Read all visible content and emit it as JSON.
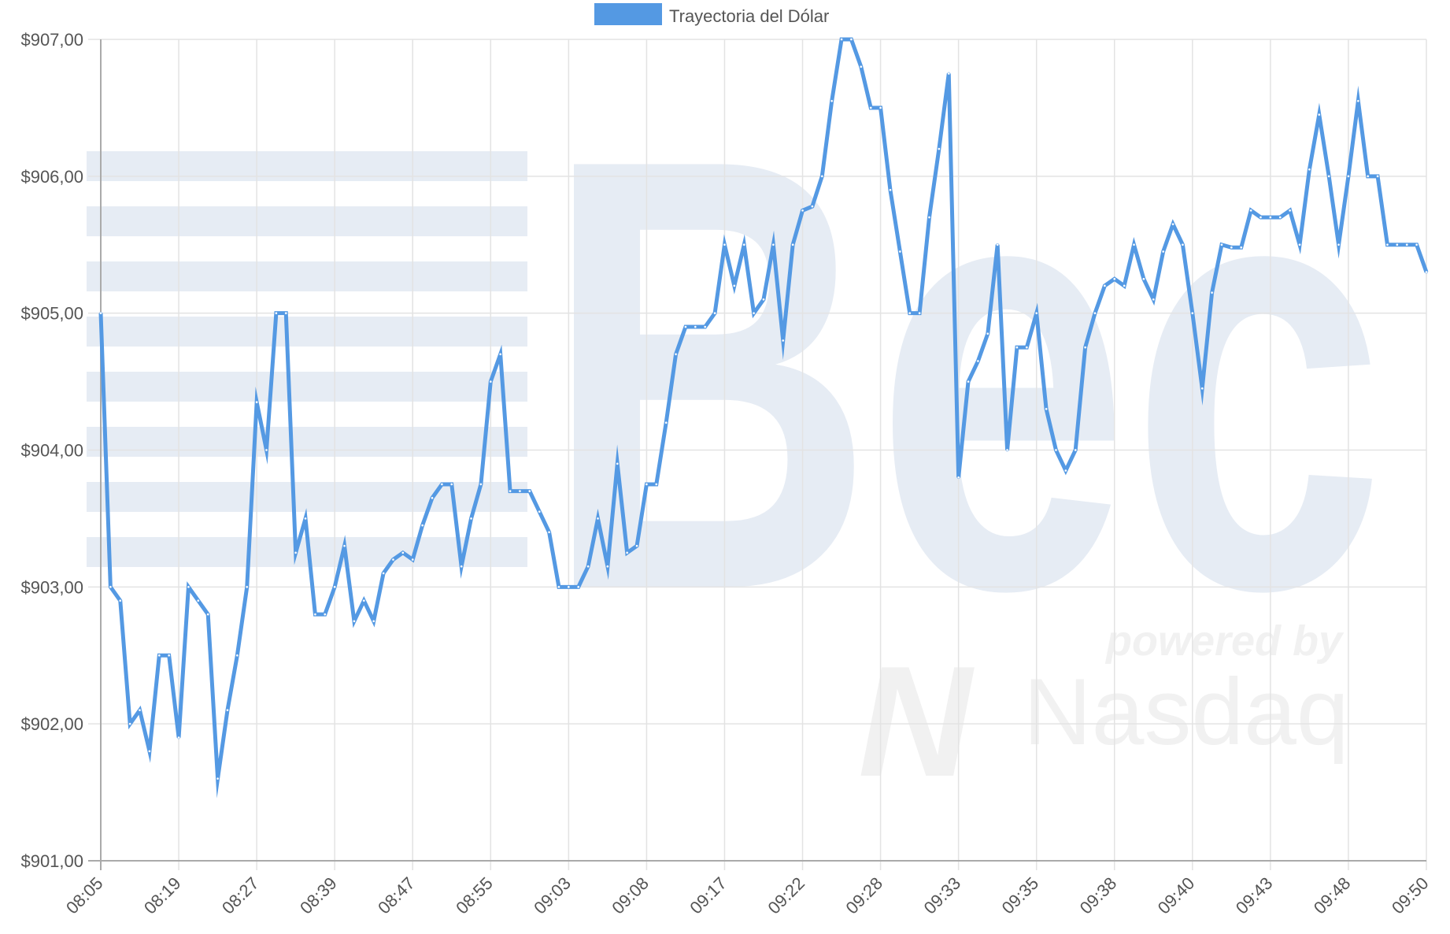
{
  "watermark": {
    "brand": "Bec",
    "tagline": "powered by",
    "partner": "Nasdaq",
    "partner_mark": "N"
  },
  "colors": {
    "series": "#5499e3",
    "grid": "#e3e3e3",
    "axis": "#aaaaaa",
    "text": "#555555",
    "watermark": "#e6ecf4",
    "watermark_nasdaq": "#f1f1f1"
  },
  "chart_data": {
    "type": "line",
    "grid": true,
    "legend_position": "top-center",
    "series": [
      {
        "name": "Trayectoria del Dólar",
        "color": "#5499e3",
        "values": [
          905.0,
          903.0,
          902.9,
          902.0,
          902.1,
          901.8,
          902.5,
          902.5,
          901.9,
          903.0,
          902.9,
          902.8,
          901.6,
          902.1,
          902.5,
          903.0,
          904.35,
          904.0,
          905.0,
          905.0,
          903.25,
          903.5,
          902.8,
          902.8,
          903.0,
          903.3,
          902.75,
          902.9,
          902.75,
          903.1,
          903.2,
          903.25,
          903.2,
          903.45,
          903.65,
          903.75,
          903.75,
          903.15,
          903.5,
          903.75,
          904.5,
          904.7,
          903.7,
          903.7,
          903.7,
          903.55,
          903.4,
          903.0,
          903.0,
          903.0,
          903.15,
          903.5,
          903.15,
          903.9,
          903.25,
          903.3,
          903.75,
          903.75,
          904.2,
          904.7,
          904.9,
          904.9,
          904.9,
          905.0,
          905.5,
          905.2,
          905.5,
          905.0,
          905.1,
          905.5,
          904.8,
          905.5,
          905.75,
          905.78,
          906.0,
          906.55,
          907.0,
          907.0,
          906.8,
          906.5,
          906.5,
          905.9,
          905.45,
          905.0,
          905.0,
          905.7,
          906.2,
          906.75,
          903.8,
          904.5,
          904.65,
          904.85,
          905.5,
          904.0,
          904.75,
          904.75,
          905.0,
          904.3,
          904.0,
          903.85,
          904.0,
          904.75,
          905.0,
          905.2,
          905.25,
          905.2,
          905.5,
          905.25,
          905.1,
          905.45,
          905.65,
          905.5,
          905.0,
          904.45,
          905.15,
          905.5,
          905.48,
          905.48,
          905.75,
          905.7,
          905.7,
          905.7,
          905.75,
          905.5,
          906.05,
          906.45,
          906.0,
          905.5,
          906.0,
          906.55,
          906.0,
          906.0,
          905.5,
          905.5,
          905.5,
          905.5,
          905.3
        ]
      }
    ],
    "x_tick_labels": [
      "08:05",
      "08:19",
      "08:27",
      "08:39",
      "08:47",
      "08:55",
      "09:03",
      "09:08",
      "09:17",
      "09:22",
      "09:28",
      "09:33",
      "09:35",
      "09:38",
      "09:40",
      "09:43",
      "09:48",
      "09:50"
    ],
    "y_ticks": [
      {
        "value": 907,
        "label": "$907,00"
      },
      {
        "value": 906,
        "label": "$906,00"
      },
      {
        "value": 905,
        "label": "$905,00"
      },
      {
        "value": 904,
        "label": "$904,00"
      },
      {
        "value": 903,
        "label": "$903,00"
      },
      {
        "value": 902,
        "label": "$902,00"
      },
      {
        "value": 901,
        "label": "$901,00"
      }
    ],
    "ylim": [
      901,
      907
    ],
    "title": "",
    "xlabel": "",
    "ylabel": ""
  }
}
